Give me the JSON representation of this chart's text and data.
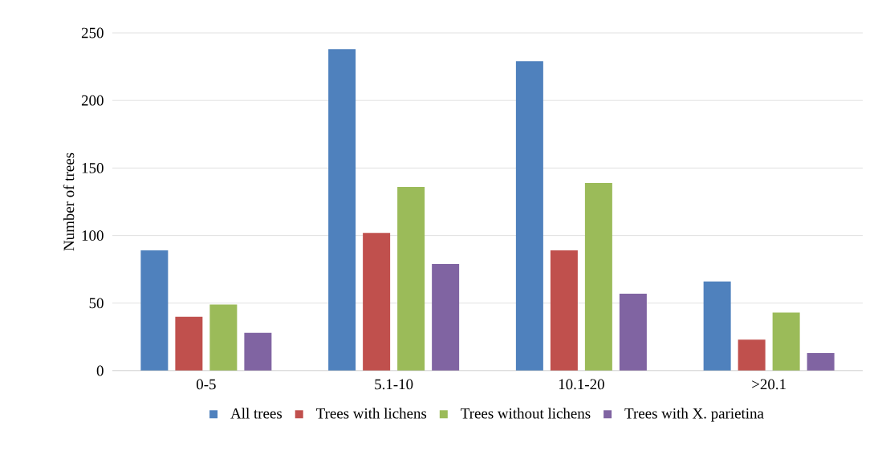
{
  "chart_data": {
    "type": "bar",
    "ylabel": "Number of trees",
    "categories": [
      "0-5",
      "5.1-10",
      "10.1-20",
      ">20.1"
    ],
    "series": [
      {
        "name": "All trees",
        "color": "#4f81bd",
        "values": [
          89,
          238,
          229,
          66
        ]
      },
      {
        "name": "Trees with lichens",
        "color": "#c0504d",
        "values": [
          40,
          102,
          89,
          23
        ]
      },
      {
        "name": "Trees without lichens",
        "color": "#9bbb59",
        "values": [
          49,
          136,
          139,
          43
        ]
      },
      {
        "name": "Trees with X. parietina",
        "color": "#8064a2",
        "values": [
          28,
          79,
          57,
          13
        ]
      }
    ],
    "ylim": [
      0,
      250
    ],
    "yticks": [
      0,
      50,
      100,
      150,
      200,
      250
    ],
    "grid": "y",
    "legend": "bottom"
  }
}
